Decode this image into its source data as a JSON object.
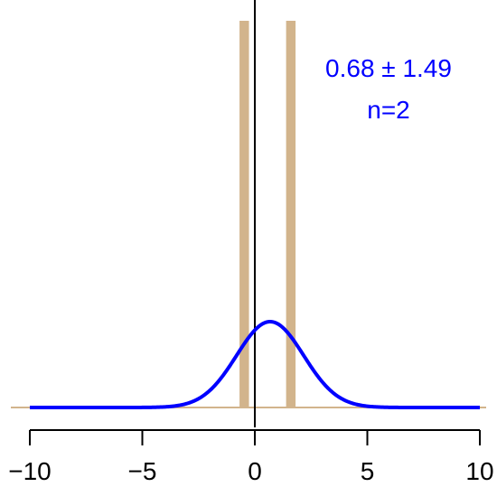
{
  "chart_data": {
    "type": "bar",
    "title": "",
    "xlabel": "",
    "ylabel": "",
    "xlim": [
      -10,
      10
    ],
    "x_ticks": [
      -10,
      -5,
      0,
      5,
      10
    ],
    "x_tick_labels": [
      "−10",
      "−5",
      "0",
      "5",
      "10"
    ],
    "bars": [
      {
        "x": -0.47,
        "width": 0.42
      },
      {
        "x": 1.6,
        "width": 0.42
      }
    ],
    "normal_curve": {
      "mean": 0.68,
      "sd": 1.49
    },
    "reference_line_x": 0,
    "annotation": {
      "stat": "0.68 ± 1.49",
      "n": "n=2"
    },
    "colors": {
      "bars": "#d2b48c",
      "curve": "#0000ff",
      "baseline": "#d2b48c",
      "axis": "#000000",
      "text": "#0000ff"
    }
  }
}
